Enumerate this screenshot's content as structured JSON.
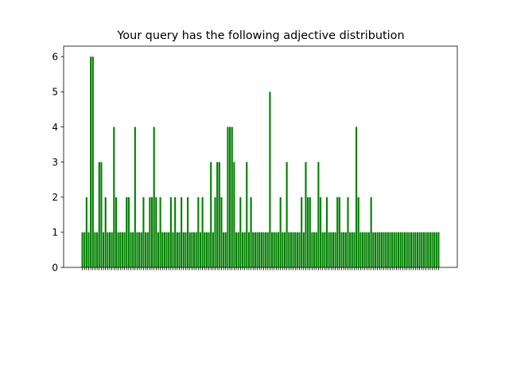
{
  "chart_data": {
    "type": "bar",
    "title": "Your query has the following adjective distribution",
    "categories": [
      null,
      null,
      null,
      null,
      null,
      null,
      null,
      null,
      null,
      null,
      null,
      null,
      null,
      null,
      null,
      null,
      null,
      null,
      null,
      null,
      null,
      null,
      null,
      null,
      null,
      null,
      null,
      null,
      null,
      null,
      null,
      null,
      null,
      null,
      null,
      null,
      null,
      null,
      null,
      null,
      null,
      null,
      null,
      null,
      null,
      null,
      null,
      null,
      null,
      null,
      null,
      null,
      null,
      null,
      null,
      null,
      null,
      null,
      null,
      null,
      null,
      null,
      null,
      null,
      null,
      null,
      null,
      null,
      null,
      null,
      null,
      null,
      null,
      null,
      null,
      null,
      null,
      null,
      null,
      null,
      null,
      null,
      null,
      null,
      null,
      null,
      null,
      null,
      null,
      null,
      null,
      null,
      null,
      null,
      null,
      null,
      null,
      null,
      null,
      null,
      null,
      null,
      null,
      null,
      null,
      null,
      null,
      null,
      null,
      null,
      null,
      null,
      null,
      null,
      null,
      null,
      null,
      null,
      null,
      null,
      null,
      null,
      null,
      null,
      null,
      null,
      null,
      null,
      null,
      null,
      null,
      null,
      null,
      null,
      null,
      null,
      null,
      null,
      null,
      null,
      null,
      null,
      null,
      null,
      null,
      null,
      null,
      null,
      null,
      null,
      null,
      null,
      null,
      null,
      null,
      null,
      null,
      null,
      null,
      null,
      null,
      null,
      null,
      null,
      null,
      null,
      null,
      null,
      null,
      null
    ],
    "values": [
      1,
      1,
      2,
      1,
      6,
      6,
      1,
      1,
      3,
      3,
      1,
      2,
      1,
      1,
      1,
      4,
      2,
      1,
      1,
      1,
      1,
      2,
      2,
      1,
      1,
      4,
      1,
      1,
      1,
      2,
      1,
      1,
      2,
      2,
      4,
      2,
      1,
      2,
      1,
      1,
      1,
      1,
      2,
      1,
      2,
      1,
      1,
      2,
      1,
      1,
      2,
      1,
      1,
      1,
      1,
      2,
      1,
      2,
      1,
      1,
      1,
      3,
      1,
      2,
      3,
      3,
      2,
      1,
      1,
      4,
      4,
      4,
      3,
      1,
      1,
      2,
      1,
      1,
      3,
      1,
      2,
      1,
      1,
      1,
      1,
      1,
      1,
      1,
      1,
      5,
      1,
      1,
      1,
      1,
      2,
      1,
      1,
      3,
      1,
      1,
      1,
      1,
      1,
      1,
      2,
      1,
      3,
      2,
      2,
      1,
      1,
      1,
      3,
      2,
      1,
      1,
      2,
      1,
      1,
      1,
      1,
      2,
      2,
      1,
      1,
      1,
      2,
      1,
      1,
      1,
      4,
      2,
      1,
      1,
      1,
      1,
      1,
      2,
      1,
      1,
      1,
      1,
      1,
      1,
      1,
      1,
      1,
      1,
      1,
      1,
      1,
      1,
      1,
      1,
      1,
      1,
      1,
      1,
      1,
      1,
      1,
      1,
      1,
      1,
      1,
      1,
      1,
      1,
      1,
      1
    ],
    "color": "#008000",
    "ylim": [
      0,
      6.3
    ],
    "yticks": [
      0,
      1,
      2,
      3,
      4,
      5,
      6
    ]
  }
}
